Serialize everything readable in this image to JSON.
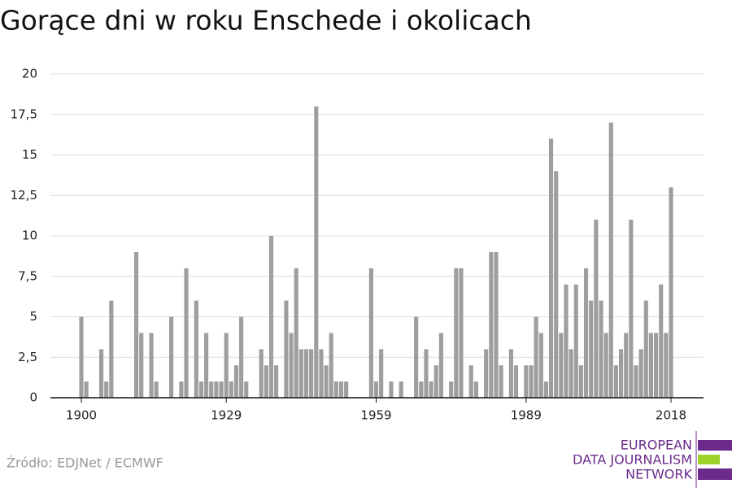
{
  "chart_data": {
    "type": "bar",
    "title": "Gorące dni w roku Enschede i okolicach",
    "source": "Źródło: EDJNet / ECMWF",
    "logo": [
      "EUROPEAN",
      "DATA JOURNALISM",
      "NETWORK"
    ],
    "categories": [
      "1900",
      null,
      null,
      null,
      null,
      null,
      null,
      null,
      null,
      null,
      null,
      null,
      null,
      null,
      null,
      null,
      null,
      null,
      null,
      null,
      null,
      null,
      null,
      null,
      null,
      null,
      null,
      null,
      null,
      "1929",
      null,
      null,
      null,
      null,
      null,
      null,
      null,
      null,
      null,
      null,
      null,
      null,
      null,
      null,
      null,
      null,
      null,
      null,
      null,
      null,
      null,
      null,
      null,
      null,
      null,
      null,
      null,
      null,
      null,
      "1959",
      null,
      null,
      null,
      null,
      null,
      null,
      null,
      null,
      null,
      null,
      null,
      null,
      null,
      null,
      null,
      null,
      null,
      null,
      null,
      null,
      null,
      null,
      null,
      null,
      null,
      null,
      null,
      null,
      null,
      "1989",
      null,
      null,
      null,
      null,
      null,
      null,
      null,
      null,
      null,
      null,
      null,
      null,
      null,
      null,
      null,
      null,
      null,
      null,
      null,
      null,
      null,
      null,
      null,
      null,
      null,
      null,
      null,
      null,
      "2018"
    ],
    "values": [
      5,
      1,
      0,
      0,
      3,
      1,
      6,
      0,
      0,
      0,
      0,
      9,
      4,
      0,
      4,
      1,
      0,
      0,
      5,
      0,
      1,
      8,
      0,
      6,
      1,
      4,
      1,
      1,
      1,
      4,
      1,
      2,
      5,
      1,
      0,
      0,
      3,
      2,
      10,
      2,
      0,
      6,
      4,
      8,
      3,
      3,
      3,
      18,
      3,
      2,
      4,
      1,
      1,
      1,
      0,
      0,
      0,
      0,
      8,
      1,
      3,
      0,
      1,
      0,
      1,
      0,
      0,
      5,
      1,
      3,
      1,
      2,
      4,
      0,
      1,
      8,
      8,
      0,
      2,
      1,
      0,
      3,
      9,
      9,
      2,
      0,
      3,
      2,
      0,
      2,
      2,
      5,
      4,
      1,
      16,
      14,
      4,
      7,
      3,
      7,
      2,
      8,
      6,
      11,
      6,
      4,
      17,
      2,
      3,
      4,
      11,
      2,
      3,
      6,
      4,
      4,
      7,
      4,
      13
    ],
    "color": "#9e9e9e",
    "ylim": [
      0,
      20
    ],
    "yticks": [
      0,
      {
        "value": 2.5,
        "label": "2,5"
      },
      5,
      {
        "value": 7.5,
        "label": "7,5"
      },
      10,
      {
        "value": 12.5,
        "label": "12,5"
      },
      15,
      {
        "value": 17.5,
        "label": "17,5"
      },
      20
    ],
    "grid": true
  }
}
